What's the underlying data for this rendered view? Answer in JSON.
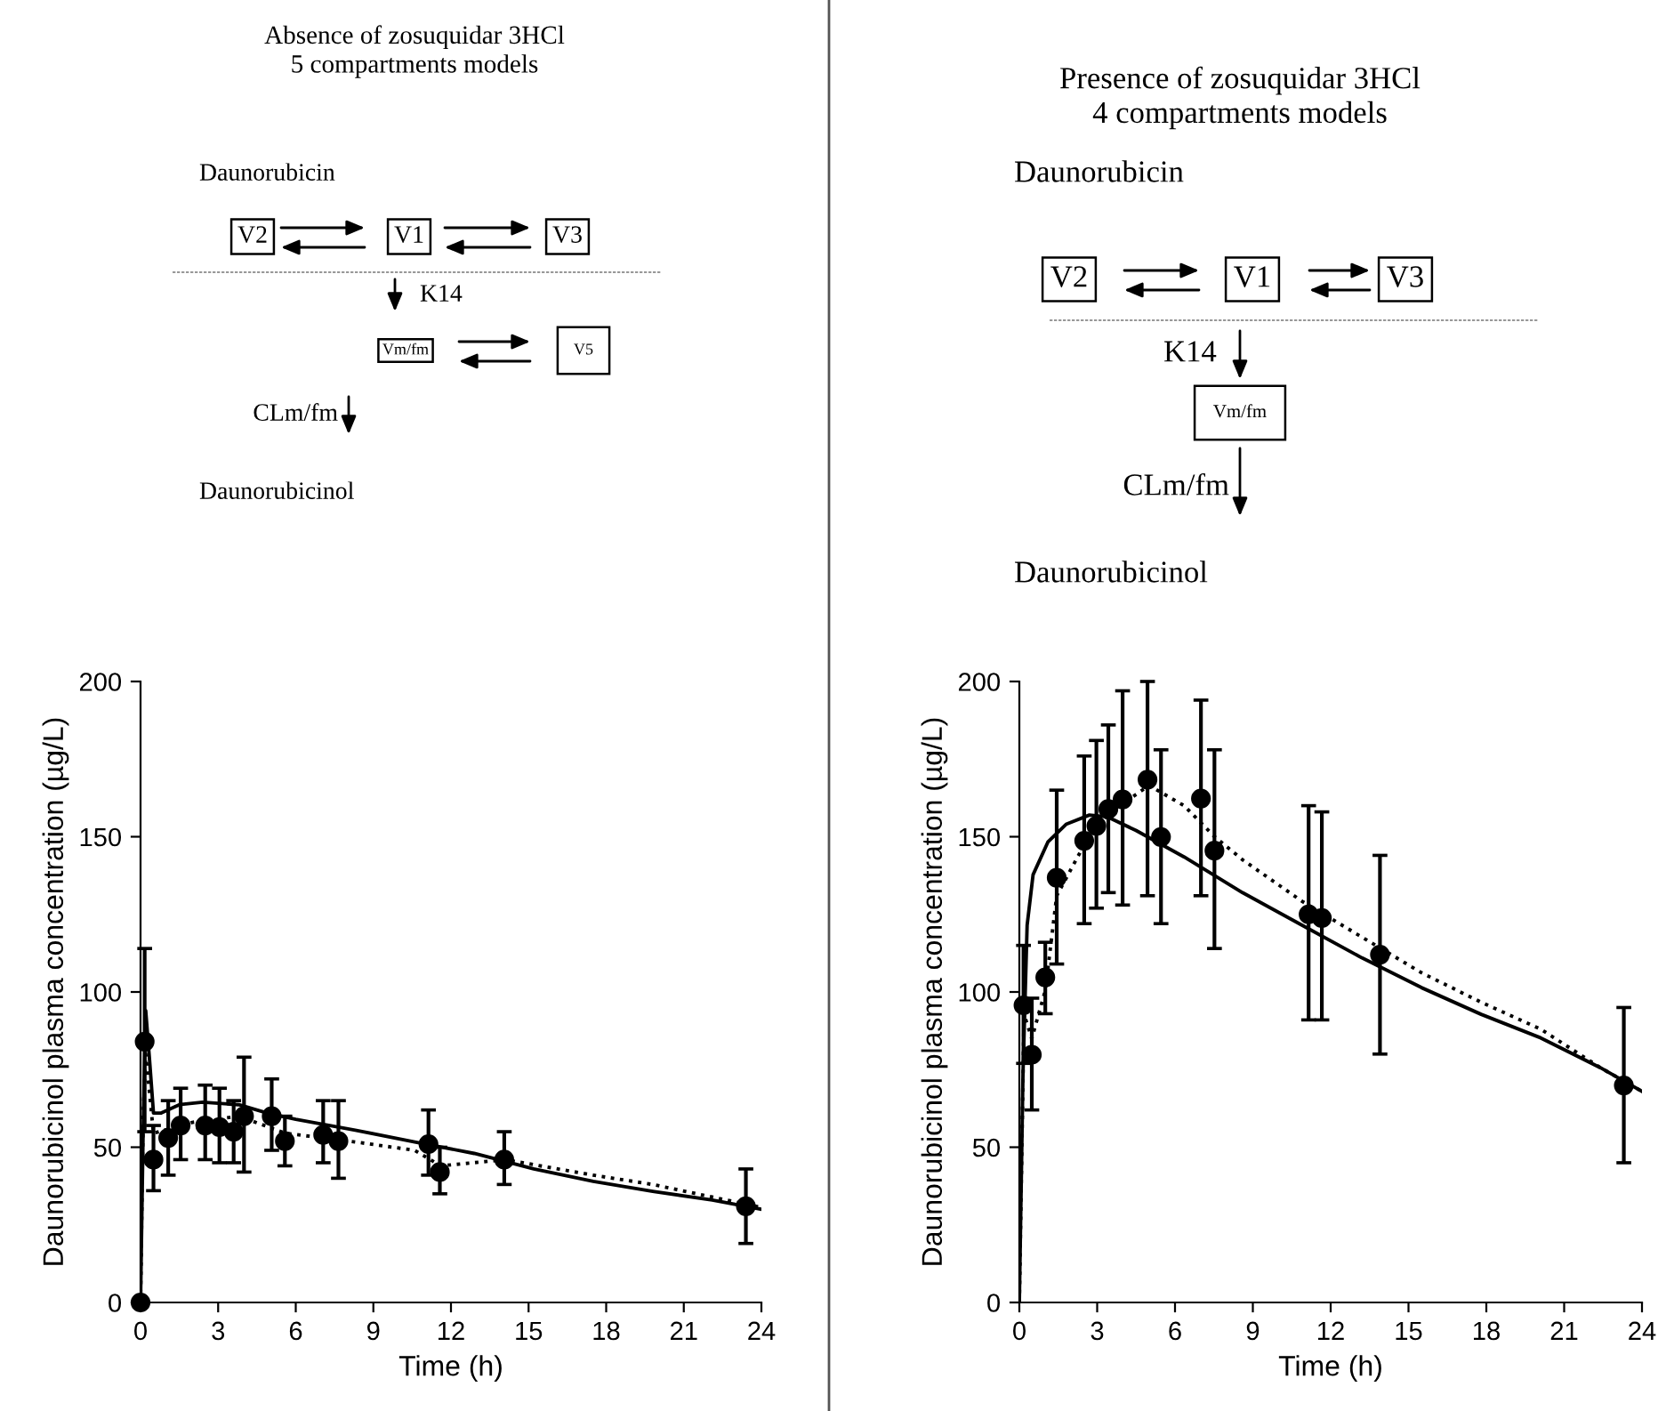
{
  "chart_data": [
    {
      "type": "scatter",
      "title": "Absence of zosuquidar 3HCl\n5 compartments models",
      "xlabel": "Time (h)",
      "ylabel": "Daunorubicinol plasma concentration (µg/L)",
      "xlim": [
        0,
        24
      ],
      "xticks": [
        0,
        3,
        6,
        9,
        12,
        15,
        18,
        21,
        24
      ],
      "ylim": [
        0,
        200
      ],
      "yticks": [
        0,
        50,
        100,
        150,
        200
      ],
      "annotations": [
        "Daunorubicin",
        "V2",
        "V1",
        "V3",
        "K14",
        "Vm/fm",
        "V5",
        "CLm/fm",
        "Daunorubicinol"
      ],
      "series": [
        {
          "color": "#000000",
          "marker": "circle",
          "x": [
            0,
            0.16,
            0.5,
            1.07,
            1.55,
            2.5,
            3.05,
            3.6,
            4.0,
            5.07,
            5.58,
            7.06,
            7.65,
            11.13,
            11.57,
            14.06,
            23.4
          ],
          "values": [
            0,
            84,
            46,
            53,
            57,
            57,
            56.5,
            55,
            60,
            60,
            52,
            54,
            52,
            51,
            42,
            46,
            31
          ],
          "errors": [
            null,
            [
              55,
              114
            ],
            [
              36,
              57
            ],
            [
              41,
              65
            ],
            [
              46,
              69
            ],
            [
              46,
              70
            ],
            [
              45,
              69
            ],
            [
              45,
              65
            ],
            [
              42,
              79
            ],
            [
              49,
              72
            ],
            [
              44,
              60
            ],
            [
              45,
              65
            ],
            [
              40,
              65
            ],
            [
              41,
              62
            ],
            [
              35,
              50
            ],
            [
              38,
              55
            ],
            [
              19,
              43
            ]
          ]
        },
        {
          "type": "line",
          "color": "#000000",
          "line_style": "solid",
          "marker": "none",
          "x": [
            0,
            0.1,
            0.2,
            0.35,
            0.5,
            0.8,
            1.5,
            2.4,
            3.8,
            4.9,
            6,
            8.3,
            10.6,
            12.9,
            15.2,
            17.5,
            19.8,
            22.1,
            24
          ],
          "values": [
            0,
            55,
            94,
            78,
            61,
            61,
            63.7,
            64.5,
            63.7,
            61,
            59,
            55.5,
            51.7,
            48,
            43,
            39,
            35.8,
            33,
            30
          ]
        },
        {
          "type": "line",
          "color": "#000000",
          "line_style": "dotted",
          "marker": "none",
          "x": [
            0,
            0.1,
            0.2,
            0.5,
            2,
            3.8,
            5.6,
            8.3,
            10.6,
            11.6,
            14.1,
            17.5,
            19.8,
            24
          ],
          "values": [
            0,
            60,
            80,
            54.5,
            58,
            60,
            54.5,
            51.7,
            49,
            44,
            46,
            41,
            38,
            30.6
          ]
        }
      ]
    },
    {
      "type": "scatter",
      "title": "Presence of zosuquidar 3HCl\n4 compartments models",
      "xlabel": "Time (h)",
      "ylabel": "Daunorubicinol plasma concentration (µg/L)",
      "xlim": [
        0,
        24
      ],
      "xticks": [
        0,
        3,
        6,
        9,
        12,
        15,
        18,
        21,
        24
      ],
      "ylim": [
        0,
        200
      ],
      "yticks": [
        0,
        50,
        100,
        150,
        200
      ],
      "annotations": [
        "Daunorubicin",
        "V2",
        "V1",
        "V3",
        "K14",
        "Vm/fm",
        "CLm/fm",
        "Daunorubicinol"
      ],
      "series": [
        {
          "color": "#000000",
          "marker": "circle",
          "x": [
            0.16,
            0.48,
            1.0,
            1.44,
            2.5,
            2.97,
            3.43,
            3.98,
            4.94,
            5.46,
            7.0,
            7.52,
            11.15,
            11.66,
            13.9,
            23.3
          ],
          "values": [
            95.7,
            79.8,
            104.7,
            136.8,
            148.7,
            153.5,
            158.9,
            162,
            168.4,
            149.9,
            162.3,
            145.5,
            125,
            123.8,
            112,
            69.9
          ],
          "errors": [
            [
              77,
              115
            ],
            [
              62,
              98
            ],
            [
              93,
              116
            ],
            [
              109,
              165
            ],
            [
              122,
              176
            ],
            [
              127,
              181
            ],
            [
              132,
              186
            ],
            [
              128,
              197
            ],
            [
              131,
              200
            ],
            [
              122,
              178
            ],
            [
              131,
              194
            ],
            [
              114,
              178
            ],
            [
              91,
              160
            ],
            [
              91,
              158
            ],
            [
              80,
              144
            ],
            [
              45,
              95
            ]
          ]
        },
        {
          "type": "line",
          "color": "#000000",
          "line_style": "solid",
          "marker": "none",
          "x": [
            0,
            0.14,
            0.3,
            0.53,
            1.1,
            1.8,
            2.7,
            3.4,
            4.5,
            6.35,
            8.6,
            10.9,
            13.2,
            15.5,
            17.8,
            20.1,
            22.4,
            24
          ],
          "values": [
            0,
            73.7,
            121.5,
            137.8,
            148.3,
            154,
            157,
            156.4,
            152,
            143.5,
            132,
            121.5,
            111,
            101.4,
            92.8,
            85.2,
            75.6,
            68
          ]
        },
        {
          "type": "line",
          "color": "#000000",
          "line_style": "dotted",
          "marker": "none",
          "x": [
            0,
            0.18,
            0.48,
            1.0,
            1.44,
            2.5,
            3.43,
            5,
            6.35,
            7.5,
            8.6,
            10.9,
            13.2,
            15.5,
            17.8,
            20.1,
            22.4,
            24
          ],
          "values": [
            0,
            92.8,
            85,
            100.5,
            131,
            147.4,
            157.5,
            166.5,
            160,
            150.2,
            142.6,
            129.2,
            117.7,
            106.2,
            96.7,
            88,
            75.6,
            68
          ]
        }
      ]
    }
  ]
}
